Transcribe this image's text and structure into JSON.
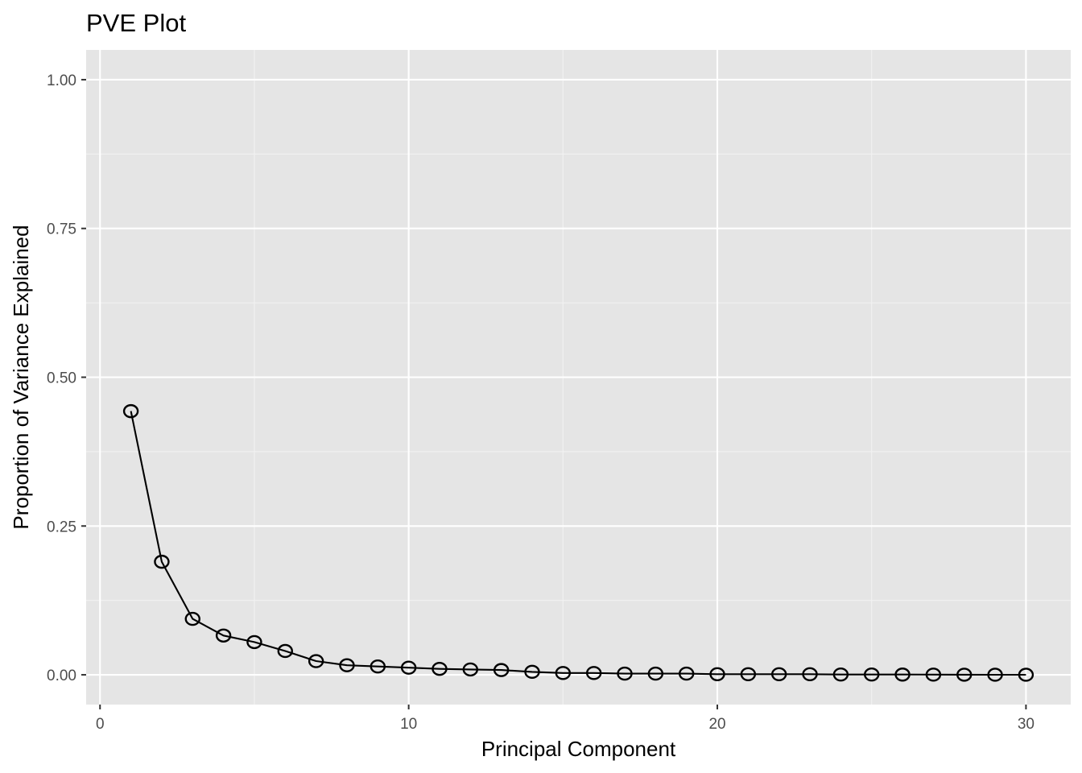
{
  "chart_data": {
    "type": "line",
    "title": "PVE Plot",
    "xlabel": "Principal Component",
    "ylabel": "Proportion of Variance Explained",
    "xlim": [
      -0.45,
      31.45
    ],
    "ylim": [
      -0.05,
      1.05
    ],
    "x_ticks": [
      0,
      10,
      20,
      30
    ],
    "x_tick_labels": [
      "0",
      "10",
      "20",
      "30"
    ],
    "y_ticks": [
      0,
      0.25,
      0.5,
      0.75,
      1.0
    ],
    "y_tick_labels": [
      "0.00",
      "0.25",
      "0.50",
      "0.75",
      "1.00"
    ],
    "x_minor_ticks": [
      5,
      15,
      25
    ],
    "y_minor_ticks": [
      0.125,
      0.375,
      0.625,
      0.875
    ],
    "grid": true,
    "marker": "open-circle",
    "series": [
      {
        "x": [
          1,
          2,
          3,
          4,
          5,
          6,
          7,
          8,
          9,
          10,
          11,
          12,
          13,
          14,
          15,
          16,
          17,
          18,
          19,
          20,
          21,
          22,
          23,
          24,
          25,
          26,
          27,
          28,
          29,
          30
        ],
        "values": [
          0.443,
          0.19,
          0.094,
          0.066,
          0.055,
          0.04,
          0.023,
          0.016,
          0.014,
          0.012,
          0.01,
          0.009,
          0.008,
          0.005,
          0.003,
          0.003,
          0.002,
          0.002,
          0.002,
          0.001,
          0.001,
          0.001,
          0.001,
          0.0005,
          0.0005,
          0.0004,
          0.0003,
          0.0002,
          0.0001,
          0.0001
        ]
      }
    ],
    "colors": {
      "panel_background": "#e5e5e5",
      "grid_major": "#ffffff",
      "grid_minor": "#f2f2f2",
      "line": "#000000",
      "marker": "#000000",
      "tick_label": "#4d4d4d",
      "tick_mark": "#333333"
    }
  }
}
